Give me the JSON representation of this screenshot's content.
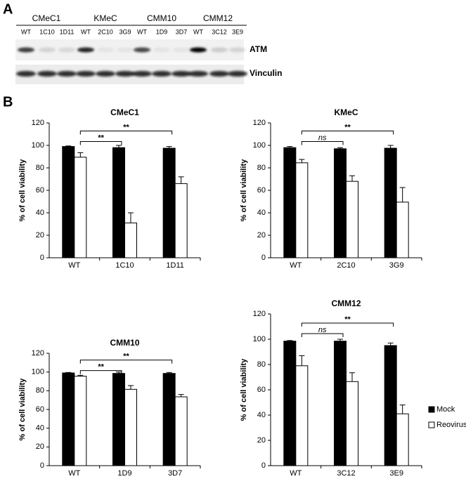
{
  "panel_a": {
    "label": "A",
    "groups": [
      {
        "name": "CMeC1",
        "lanes": [
          "WT",
          "1C10",
          "1D11"
        ]
      },
      {
        "name": "KMeC",
        "lanes": [
          "WT",
          "2C10",
          "3G9"
        ]
      },
      {
        "name": "CMM10",
        "lanes": [
          "WT",
          "1D9",
          "3D7"
        ]
      },
      {
        "name": "CMM12",
        "lanes": [
          "WT",
          "3C12",
          "3E9"
        ]
      }
    ],
    "rows": [
      "ATM",
      "Vinculin"
    ]
  },
  "panel_b": {
    "label": "B"
  },
  "chart_data": [
    {
      "type": "bar",
      "title": "CMeC1",
      "ylabel": "% of cell viability",
      "categories": [
        "WT",
        "1C10",
        "1D11"
      ],
      "series": [
        {
          "color": "#000000",
          "values": [
            99,
            98,
            97.5
          ],
          "errors": [
            0.5,
            2,
            1.5
          ]
        },
        {
          "color": "#ffffff",
          "values": [
            89.5,
            31,
            66
          ],
          "errors": [
            4,
            9,
            6
          ]
        }
      ],
      "ylim": [
        0,
        120
      ],
      "yticks": [
        0,
        20,
        40,
        60,
        80,
        100,
        120
      ],
      "annotations": [
        {
          "label": "**",
          "between": [
            "WT",
            "1C10"
          ]
        },
        {
          "label": "**",
          "between": [
            "WT",
            "1D11"
          ]
        }
      ]
    },
    {
      "type": "bar",
      "title": "KMeC",
      "ylabel": "% of cell viability",
      "categories": [
        "WT",
        "2C10",
        "3G9"
      ],
      "series": [
        {
          "color": "#000000",
          "values": [
            98,
            97,
            97.5
          ],
          "errors": [
            1,
            1,
            2.5
          ]
        },
        {
          "color": "#ffffff",
          "values": [
            84.5,
            68,
            49.5
          ],
          "errors": [
            3,
            5,
            13
          ]
        }
      ],
      "ylim": [
        0,
        120
      ],
      "yticks": [
        0,
        20,
        40,
        60,
        80,
        100,
        120
      ],
      "annotations": [
        {
          "label": "ns",
          "between": [
            "WT",
            "2C10"
          ]
        },
        {
          "label": "**",
          "between": [
            "WT",
            "3G9"
          ]
        }
      ]
    },
    {
      "type": "bar",
      "title": "CMM10",
      "ylabel": "% of cell viability",
      "categories": [
        "WT",
        "1D9",
        "3D7"
      ],
      "series": [
        {
          "color": "#000000",
          "values": [
            99,
            98.5,
            98.5
          ],
          "errors": [
            0.5,
            1.5,
            1
          ]
        },
        {
          "color": "#ffffff",
          "values": [
            95.5,
            81.5,
            73.5
          ],
          "errors": [
            1,
            4,
            2.5
          ]
        }
      ],
      "ylim": [
        0,
        120
      ],
      "yticks": [
        0,
        20,
        40,
        60,
        80,
        100,
        120
      ],
      "annotations": [
        {
          "label": "**",
          "between": [
            "WT",
            "1D9"
          ]
        },
        {
          "label": "**",
          "between": [
            "WT",
            "3D7"
          ]
        }
      ]
    },
    {
      "type": "bar",
      "title": "CMM12",
      "ylabel": "% of cell viability",
      "categories": [
        "WT",
        "3C12",
        "3E9"
      ],
      "series": [
        {
          "name": "Mock",
          "color": "#000000",
          "values": [
            98.5,
            98.5,
            95
          ],
          "errors": [
            0.5,
            1.5,
            2
          ]
        },
        {
          "name": "Reovirus",
          "color": "#ffffff",
          "values": [
            79,
            66.5,
            41
          ],
          "errors": [
            8,
            7,
            7
          ]
        }
      ],
      "ylim": [
        0,
        120
      ],
      "yticks": [
        0,
        20,
        40,
        60,
        80,
        100,
        120
      ],
      "legend": "right",
      "annotations": [
        {
          "label": "ns",
          "between": [
            "WT",
            "3C12"
          ]
        },
        {
          "label": "**",
          "between": [
            "WT",
            "3E9"
          ]
        }
      ]
    }
  ]
}
